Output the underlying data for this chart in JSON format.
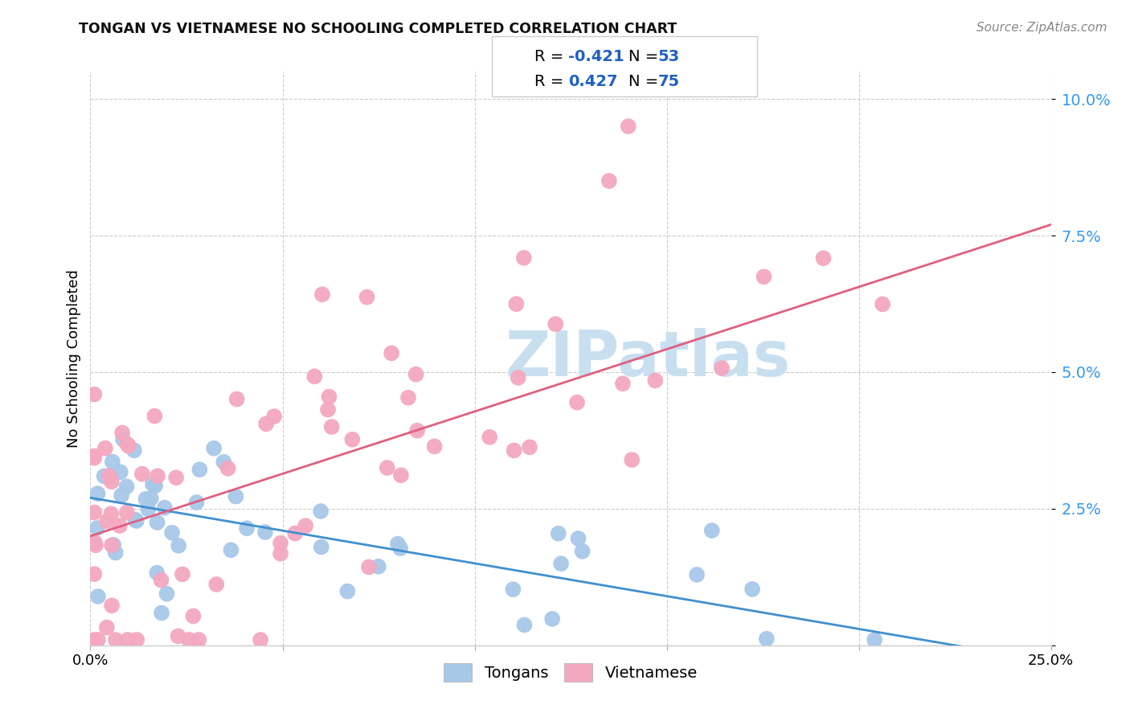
{
  "title": "TONGAN VS VIETNAMESE NO SCHOOLING COMPLETED CORRELATION CHART",
  "source": "Source: ZipAtlas.com",
  "ylabel": "No Schooling Completed",
  "xlim": [
    0.0,
    0.25
  ],
  "ylim": [
    0.0,
    0.105
  ],
  "xticks": [
    0.0,
    0.05,
    0.1,
    0.15,
    0.2,
    0.25
  ],
  "yticks": [
    0.0,
    0.025,
    0.05,
    0.075,
    0.1
  ],
  "ytick_labels": [
    "",
    "2.5%",
    "5.0%",
    "7.5%",
    "10.0%"
  ],
  "xtick_labels": [
    "0.0%",
    "",
    "",
    "",
    "",
    "25.0%"
  ],
  "tongans_color": "#a8c8e8",
  "vietnamese_color": "#f4a8c0",
  "line_tongan_color": "#4090d0",
  "line_vietnamese_color": "#e06080",
  "watermark_color": "#c8dff0",
  "r_color": "#2060c0",
  "n_color": "#2060c0",
  "title_color": "#111111",
  "source_color": "#888888",
  "grid_color": "#cccccc",
  "tick_color": "#3399ee"
}
